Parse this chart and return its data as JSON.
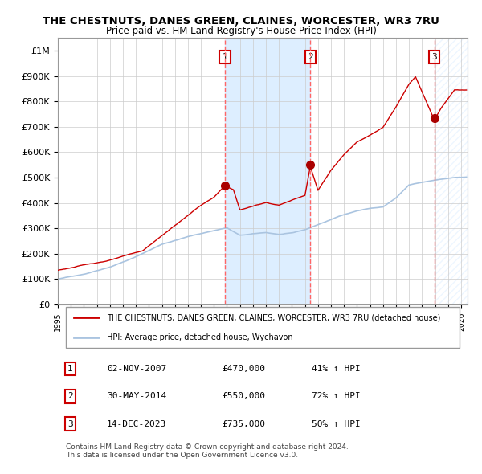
{
  "title": "THE CHESTNUTS, DANES GREEN, CLAINES, WORCESTER, WR3 7RU",
  "subtitle": "Price paid vs. HM Land Registry's House Price Index (HPI)",
  "legend_line1": "THE CHESTNUTS, DANES GREEN, CLAINES, WORCESTER, WR3 7RU (detached house)",
  "legend_line2": "HPI: Average price, detached house, Wychavon",
  "sales": [
    {
      "label": "1",
      "date": "02-NOV-2007",
      "price": 470000,
      "hpi_pct": "41% ↑ HPI",
      "x_year": 2007.84
    },
    {
      "label": "2",
      "date": "30-MAY-2014",
      "price": 550000,
      "hpi_pct": "72% ↑ HPI",
      "x_year": 2014.41
    },
    {
      "label": "3",
      "date": "14-DEC-2023",
      "price": 735000,
      "hpi_pct": "50% ↑ HPI",
      "x_year": 2023.95
    }
  ],
  "footer": "Contains HM Land Registry data © Crown copyright and database right 2024.\nThis data is licensed under the Open Government Licence v3.0.",
  "hpi_color": "#aac4e0",
  "price_color": "#cc0000",
  "sale_marker_color": "#aa0000",
  "dashed_line_color": "#ff6666",
  "shade_color": "#ddeeff",
  "grid_color": "#cccccc",
  "background_color": "#ffffff",
  "ylim": [
    0,
    1050000
  ],
  "xlim_start": 1995,
  "xlim_end": 2026.5
}
